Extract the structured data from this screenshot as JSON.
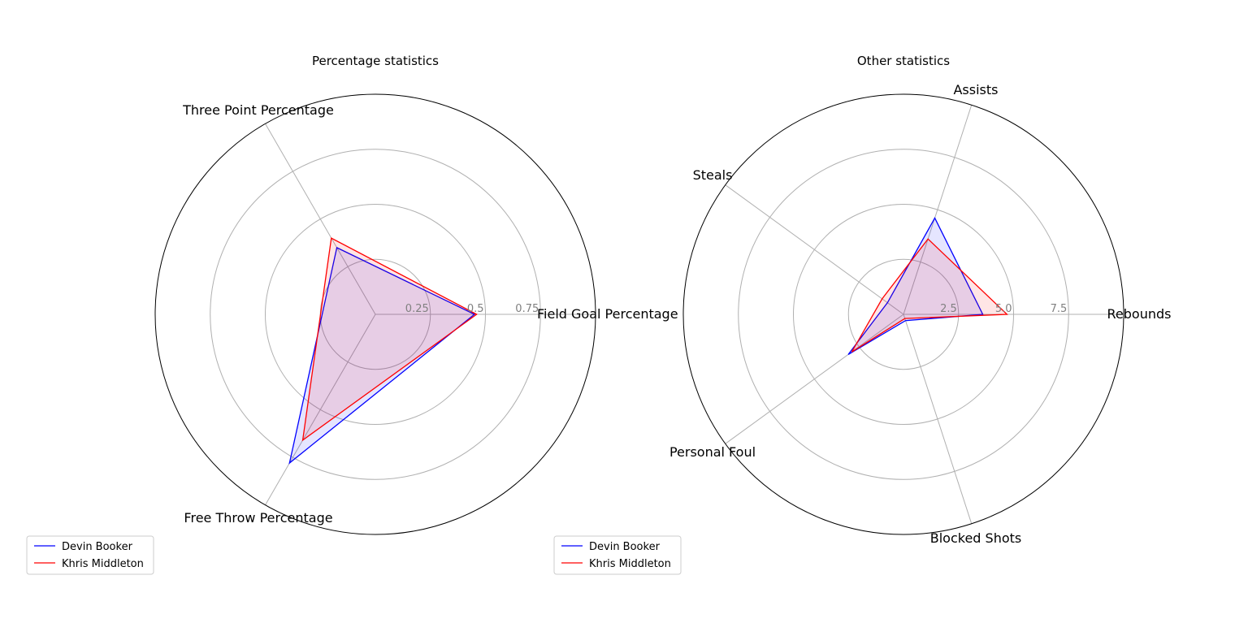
{
  "chart_data": [
    {
      "type": "radar",
      "title": "Percentage statistics",
      "categories": [
        "Field Goal Percentage",
        "Three Point Percentage",
        "Free Throw Percentage"
      ],
      "rlim": [
        0,
        1.0
      ],
      "rticks": [
        0.25,
        0.5,
        0.75
      ],
      "rtick_labels": [
        "0.25",
        "0.5",
        "0.75"
      ],
      "grid": true,
      "legend_position": "lower-left",
      "series": [
        {
          "name": "Devin Booker",
          "color": "#0000ff",
          "values": [
            0.45,
            0.35,
            0.78
          ]
        },
        {
          "name": "Khris Middleton",
          "color": "#ff0000",
          "values": [
            0.46,
            0.4,
            0.66
          ]
        }
      ]
    },
    {
      "type": "radar",
      "title": "Other statistics",
      "categories": [
        "Rebounds",
        "Assists",
        "Steals",
        "Personal Foul",
        "Blocked Shots"
      ],
      "rlim": [
        0,
        10.0
      ],
      "rticks": [
        2.5,
        5.0,
        7.5
      ],
      "rtick_labels": [
        "2.5",
        "5.0",
        "7.5"
      ],
      "grid": true,
      "legend_position": "lower-left",
      "series": [
        {
          "name": "Devin Booker",
          "color": "#0000ff",
          "values": [
            3.6,
            4.6,
            0.9,
            3.1,
            0.3
          ]
        },
        {
          "name": "Khris Middleton",
          "color": "#ff0000",
          "values": [
            4.7,
            3.6,
            1.2,
            2.9,
            0.2
          ]
        }
      ]
    }
  ]
}
